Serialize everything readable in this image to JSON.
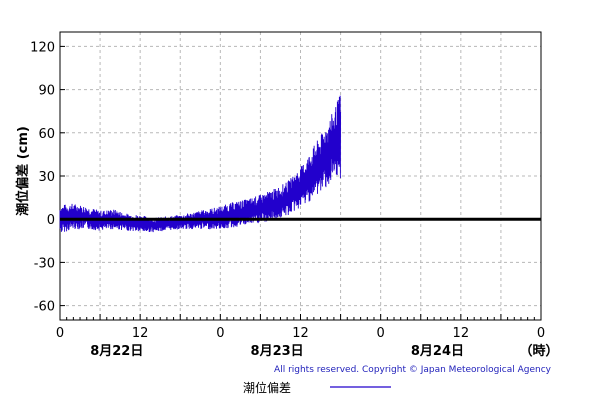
{
  "chart_data": {
    "type": "line",
    "ylabel": "潮位偏差 (cm)",
    "ylim": [
      -70,
      130
    ],
    "y_ticks": [
      -60,
      -30,
      0,
      30,
      60,
      90,
      120
    ],
    "y_tick_labels": [
      "-60",
      "-30",
      "0",
      "30",
      "60",
      "90",
      "120"
    ],
    "xlim": [
      0,
      72
    ],
    "x_ticks": [
      0,
      6,
      12,
      18,
      24,
      30,
      36,
      42,
      48,
      54,
      60,
      66,
      72
    ],
    "x_tick_labels": [
      {
        "x": 0,
        "label": "0"
      },
      {
        "x": 12,
        "label": "12"
      },
      {
        "x": 24,
        "label": "0"
      },
      {
        "x": 36,
        "label": "12"
      },
      {
        "x": 48,
        "label": "0"
      },
      {
        "x": 60,
        "label": "12"
      },
      {
        "x": 72,
        "label": "0"
      }
    ],
    "date_labels": [
      {
        "x": 8.5,
        "label": "8月22日"
      },
      {
        "x": 32.5,
        "label": "8月23日"
      },
      {
        "x": 56.5,
        "label": "8月24日"
      }
    ],
    "x_unit_label": "（時）",
    "grid": true,
    "legend_position": "bottom",
    "series": [
      {
        "name": "潮位偏差",
        "color": "#2200cc",
        "x": [
          0,
          2,
          4,
          6,
          8,
          10,
          12,
          14,
          16,
          18,
          20,
          22,
          24,
          26,
          28,
          30,
          32,
          34,
          35,
          36,
          37,
          38,
          39,
          40,
          41,
          42
        ],
        "y": [
          0,
          2,
          1,
          -1,
          0,
          -2,
          -3,
          -4,
          -3,
          -2,
          -1,
          0,
          1,
          3,
          5,
          7,
          10,
          14,
          18,
          22,
          27,
          33,
          38,
          45,
          50,
          58
        ],
        "amplitude": [
          10,
          9,
          8,
          7,
          7,
          6,
          6,
          5,
          5,
          5,
          6,
          7,
          8,
          9,
          9,
          10,
          11,
          12,
          13,
          14,
          16,
          18,
          20,
          22,
          26,
          30
        ]
      },
      {
        "name": "",
        "color": "#000000",
        "x": [
          0,
          72
        ],
        "y": [
          0,
          0
        ]
      }
    ]
  },
  "copyright": "All rights reserved. Copyright © Japan Meteorological Agency",
  "legend": {
    "label": "潮位偏差",
    "color": "#2200cc"
  }
}
